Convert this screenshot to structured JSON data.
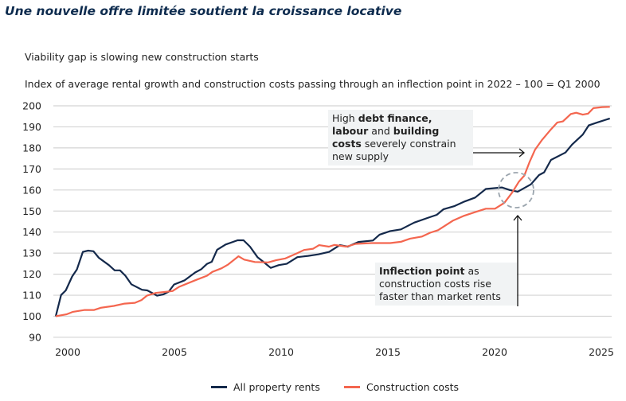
{
  "title": "Une nouvelle offre limitée soutient la croissance locative",
  "subtitle": "Viability gap is slowing new construction starts",
  "description": "Index of average rental growth and construction costs passing through an inflection point in 2022 – 100 = Q1 2000",
  "annotations": {
    "top": {
      "parts": [
        {
          "t": "High ",
          "b": false
        },
        {
          "t": "debt finance, labour",
          "b": true
        },
        {
          "t": " and ",
          "b": false
        },
        {
          "t": "building costs",
          "b": true
        },
        {
          "t": " severely constrain new supply",
          "b": false
        }
      ]
    },
    "bottom": {
      "parts": [
        {
          "t": "Inflection point",
          "b": true
        },
        {
          "t": " as construction costs rise faster than market rents",
          "b": false
        }
      ]
    }
  },
  "chart_data": {
    "type": "line",
    "title": "",
    "xlabel": "",
    "ylabel": "",
    "xlim": [
      2000,
      2026
    ],
    "ylim": [
      90,
      200
    ],
    "x_ticks": [
      "2000",
      "2005",
      "2010",
      "2015",
      "2020",
      "2025"
    ],
    "y_ticks": [
      90,
      100,
      110,
      120,
      130,
      140,
      150,
      160,
      170,
      180,
      190,
      200
    ],
    "grid": true,
    "legend": "bottom",
    "series": [
      {
        "name": "All property rents",
        "color": "#14294b",
        "x": [
          2000,
          2000.25,
          2000.47,
          2000.77,
          2000.99,
          2001.27,
          2001.52,
          2001.77,
          2002.02,
          2002.49,
          2002.76,
          2003.01,
          2003.26,
          2003.54,
          2004.04,
          2004.29,
          2004.75,
          2005.04,
          2005.29,
          2005.54,
          2006.04,
          2006.53,
          2006.82,
          2007.09,
          2007.31,
          2007.56,
          2007.96,
          2008.52,
          2008.8,
          2009.1,
          2009.45,
          2009.7,
          2010.07,
          2010.45,
          2010.82,
          2011.32,
          2011.82,
          2012.3,
          2012.81,
          2013.31,
          2013.68,
          2014.18,
          2014.86,
          2015.17,
          2015.67,
          2016.17,
          2016.79,
          2017.41,
          2017.85,
          2018.16,
          2018.66,
          2019.15,
          2019.65,
          2020.15,
          2020.9,
          2021.27,
          2021.64,
          2022.26,
          2022.64,
          2022.88,
          2023.2,
          2023.88,
          2024.19,
          2024.69,
          2024.97,
          2025.37,
          2025.96
        ],
        "y": [
          100,
          110.1,
          112.3,
          118.9,
          122.2,
          130.6,
          131.2,
          130.9,
          127.8,
          124.3,
          121.8,
          121.8,
          119.3,
          115.2,
          112.6,
          112.3,
          109.8,
          110.4,
          111.7,
          115.1,
          117.1,
          120.8,
          122.4,
          124.9,
          125.9,
          131.6,
          134.1,
          136.1,
          136.1,
          133.1,
          128.1,
          126.1,
          123,
          124.3,
          124.9,
          128.1,
          128.7,
          129.4,
          130.6,
          133.8,
          133.1,
          135.3,
          136,
          138.8,
          140.5,
          141.3,
          144.5,
          146.7,
          148.2,
          150.8,
          152.3,
          154.5,
          156.4,
          160.5,
          161.2,
          160,
          159.2,
          162.7,
          167.1,
          168.4,
          174.3,
          177.8,
          181.6,
          186.3,
          190.7,
          192.1,
          194
        ]
      },
      {
        "name": "Construction costs",
        "color": "#f4664f",
        "x": [
          2000,
          2000.5,
          2000.81,
          2001.36,
          2001.8,
          2002.1,
          2002.72,
          2003.22,
          2003.71,
          2004.02,
          2004.27,
          2004.7,
          2005.47,
          2005.78,
          2006.53,
          2007.09,
          2007.34,
          2007.77,
          2008.08,
          2008.56,
          2008.83,
          2009.33,
          2009.95,
          2010.32,
          2010.76,
          2011.32,
          2011.63,
          2012.06,
          2012.34,
          2012.8,
          2013.06,
          2013.62,
          2014.06,
          2014.8,
          2015.67,
          2016.17,
          2016.6,
          2017.16,
          2017.54,
          2017.91,
          2018.6,
          2019.09,
          2019.65,
          2020.15,
          2020.58,
          2021.02,
          2021.39,
          2021.7,
          2021.95,
          2022.2,
          2022.45,
          2022.76,
          2023.2,
          2023.5,
          2023.76,
          2024.13,
          2024.38,
          2024.69,
          2024.94,
          2025.19,
          2025.6,
          2025.96
        ],
        "y": [
          100,
          100.9,
          102.1,
          103,
          103,
          104,
          104.9,
          106,
          106.4,
          107.7,
          109.8,
          111.1,
          112,
          114,
          117.1,
          119.3,
          121.1,
          122.8,
          124.6,
          128.5,
          126.9,
          125.8,
          125.6,
          126.6,
          127.5,
          130,
          131.5,
          132.1,
          133.8,
          133.1,
          133.9,
          133.1,
          134.4,
          134.8,
          134.8,
          135.4,
          136.9,
          137.9,
          139.7,
          140.9,
          145.4,
          147.6,
          149.5,
          151.1,
          151.1,
          153.9,
          158.9,
          164,
          166.8,
          173.4,
          179.1,
          183.5,
          188.8,
          192.1,
          192.6,
          196.1,
          196.7,
          195.8,
          196.3,
          198.9,
          199.4,
          199.5
        ]
      }
    ]
  }
}
